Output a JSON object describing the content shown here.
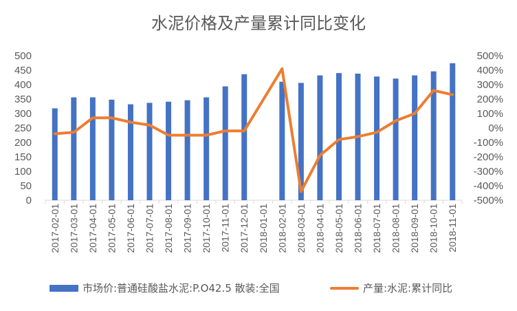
{
  "chart_data": {
    "type": "bar+line",
    "title": "水泥价格及产量累计同比变化",
    "categories": [
      "2017-02-01",
      "2017-03-01",
      "2017-04-01",
      "2017-05-01",
      "2017-06-01",
      "2017-07-01",
      "2017-08-01",
      "2017-09-01",
      "2017-10-01",
      "2017-11-01",
      "2017-12-01",
      "2018-01-01",
      "2018-02-01",
      "2018-03-01",
      "2018-04-01",
      "2018-05-01",
      "2018-06-01",
      "2018-07-01",
      "2018-08-01",
      "2018-09-01",
      "2018-10-01",
      "2018-11-01"
    ],
    "series": [
      {
        "name": "市场价:普通硅酸盐水泥:P.O42.5 散装:全国",
        "type": "bar",
        "axis": "left",
        "values": [
          318,
          356,
          356,
          348,
          332,
          337,
          341,
          346,
          356,
          394,
          436,
          null,
          410,
          406,
          432,
          440,
          438,
          428,
          421,
          432,
          446,
          474
        ],
        "color": "#4472C4"
      },
      {
        "name": "产量:水泥:累计同比",
        "type": "line",
        "axis": "right",
        "values": [
          -40,
          -30,
          70,
          70,
          40,
          20,
          -50,
          -50,
          -50,
          -20,
          -20,
          null,
          410,
          -440,
          -190,
          -80,
          -60,
          -30,
          50,
          100,
          260,
          230
        ],
        "unit": "%",
        "color": "#ED7D31"
      }
    ],
    "y_left": {
      "min": 0,
      "max": 500,
      "step": 50,
      "ticks": [
        "0",
        "50",
        "100",
        "150",
        "200",
        "250",
        "300",
        "350",
        "400",
        "450",
        "500"
      ]
    },
    "y_right": {
      "min": -500,
      "max": 500,
      "step": 100,
      "ticks": [
        "-500%",
        "-400%",
        "-300%",
        "-200%",
        "-100%",
        "0%",
        "100%",
        "200%",
        "300%",
        "400%",
        "500%"
      ]
    },
    "grid": false,
    "legend_position": "bottom"
  }
}
